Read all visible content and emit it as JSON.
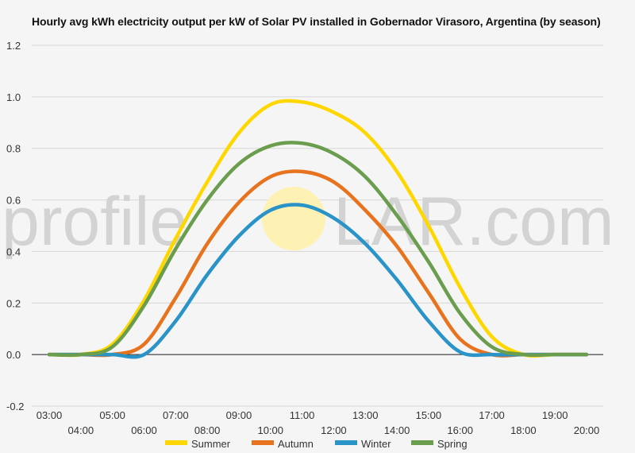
{
  "chart_data": {
    "type": "line",
    "title": "Hourly avg kWh electricity output per kW of Solar PV installed in Gobernador Virasoro, Argentina (by season)",
    "xlabel": "",
    "ylabel": "",
    "x": [
      "03:00",
      "04:00",
      "05:00",
      "06:00",
      "07:00",
      "08:00",
      "09:00",
      "10:00",
      "11:00",
      "12:00",
      "13:00",
      "14:00",
      "15:00",
      "16:00",
      "17:00",
      "18:00",
      "19:00",
      "20:00"
    ],
    "ylim": [
      -0.2,
      1.2
    ],
    "yticks": [
      "-0.2",
      "0.0",
      "0.2",
      "0.4",
      "0.6",
      "0.8",
      "1.0",
      "1.2"
    ],
    "grid": true,
    "legend_position": "bottom",
    "series": [
      {
        "name": "Summer",
        "color": "#ffd700",
        "values": [
          0,
          0,
          0.04,
          0.21,
          0.45,
          0.67,
          0.86,
          0.97,
          0.98,
          0.94,
          0.86,
          0.71,
          0.5,
          0.26,
          0.07,
          0,
          0,
          0
        ]
      },
      {
        "name": "Autumn",
        "color": "#e8731e",
        "values": [
          0,
          0,
          0,
          0.04,
          0.22,
          0.43,
          0.59,
          0.69,
          0.71,
          0.67,
          0.56,
          0.42,
          0.24,
          0.06,
          0,
          0,
          0,
          0
        ]
      },
      {
        "name": "Winter",
        "color": "#2a93c7",
        "values": [
          0,
          0,
          0,
          0,
          0.13,
          0.31,
          0.46,
          0.56,
          0.58,
          0.53,
          0.43,
          0.29,
          0.13,
          0.01,
          0,
          0,
          0,
          0
        ]
      },
      {
        "name": "Spring",
        "color": "#6a9d4d",
        "values": [
          0,
          0,
          0.03,
          0.19,
          0.41,
          0.6,
          0.74,
          0.81,
          0.82,
          0.78,
          0.69,
          0.54,
          0.36,
          0.16,
          0.03,
          0,
          0,
          0
        ]
      }
    ]
  },
  "watermark": {
    "left": "profile",
    "right": "LAR.com",
    "sun_color": "#fdf1b4"
  }
}
